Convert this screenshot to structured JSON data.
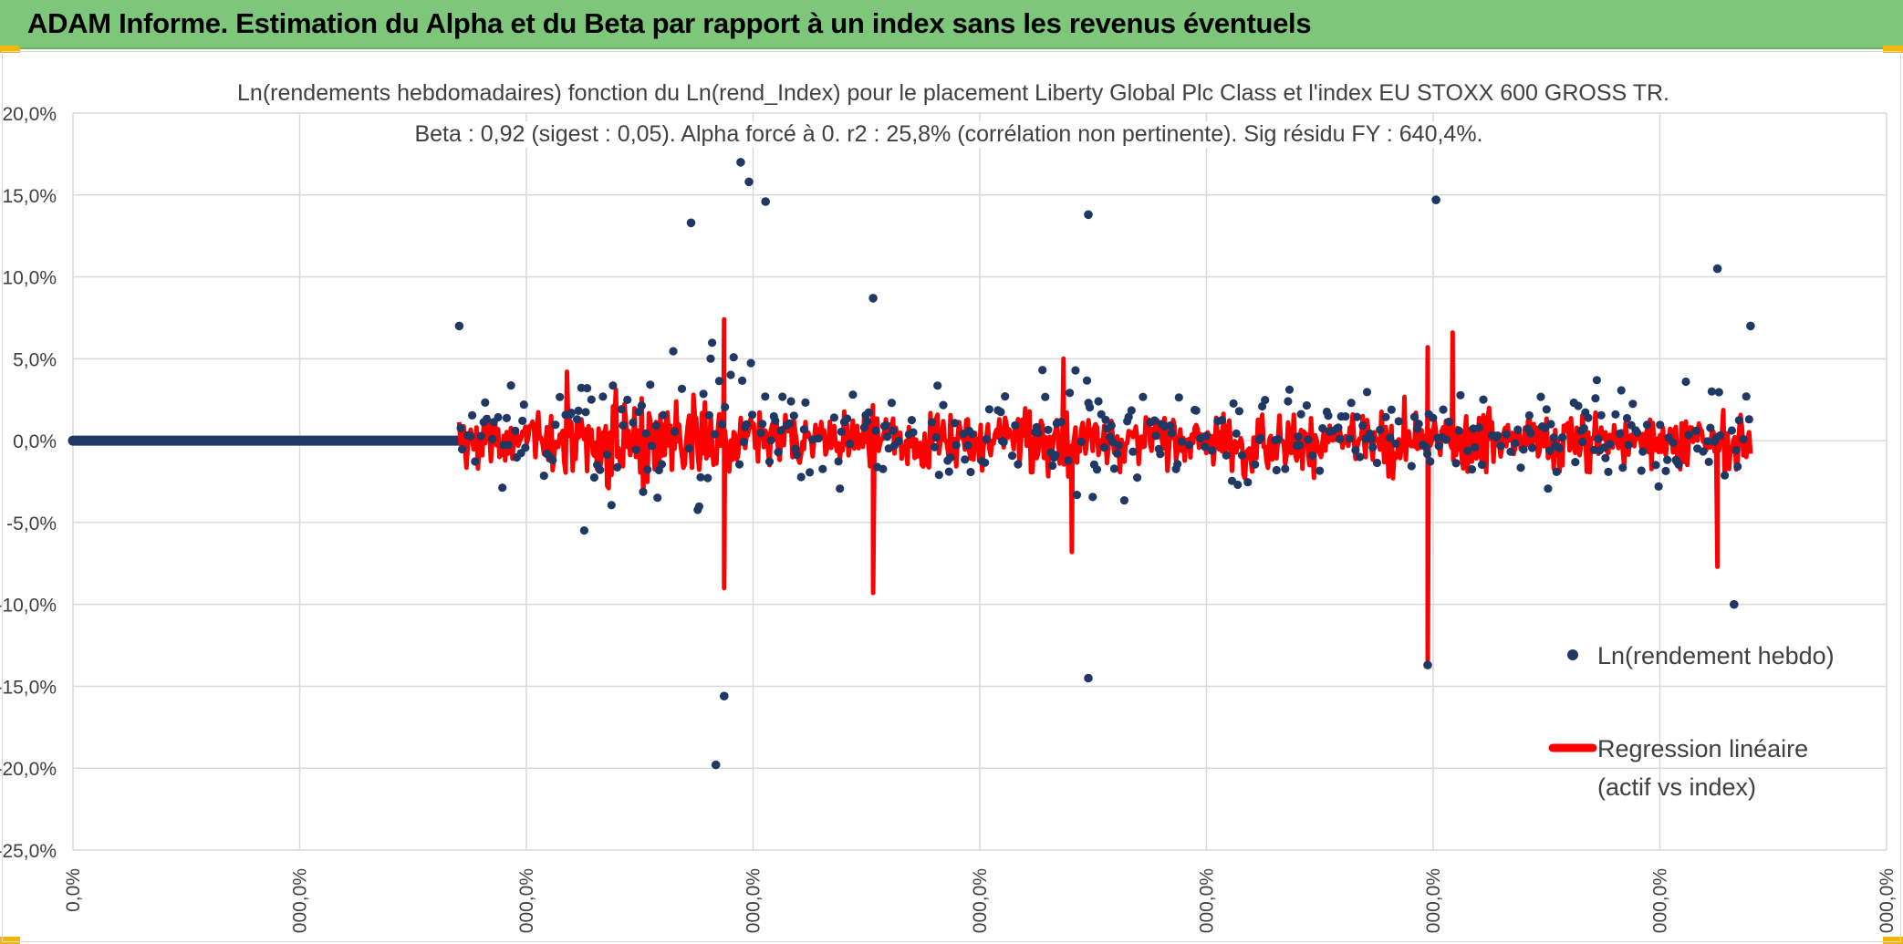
{
  "banner": {
    "title": "ADAM Informe. Estimation du Alpha et du Beta par rapport à un index sans les revenus éventuels",
    "background": "#7dc67a",
    "accent": "#f2b705"
  },
  "chart_data": {
    "type": "scatter",
    "title_line1": "Ln(rendements hebdomadaires) fonction du Ln(rend_Index) pour le placement Liberty Global Plc Class  et l'index EU STOXX 600 GROSS TR.",
    "title_line2": "Beta : 0,92 (sigest : 0,05). Alpha forcé à 0. r2 : 25,8% (corrélation non pertinente). Sig résidu FY : 640,4%.",
    "y_ticks": [
      "20,0%",
      "15,0%",
      "10,0%",
      "5,0%",
      "0,0%",
      "-5,0%",
      "-10,0%",
      "-15,0%",
      "-20,0%",
      "-25,0%"
    ],
    "x_ticks": [
      "0,0%",
      "000,0%",
      "000,0%",
      "000,0%",
      "000,0%",
      "000,0%",
      "000,0%",
      "000,0%",
      "000,0%"
    ],
    "ylim": [
      -25,
      20
    ],
    "grid": true,
    "legend_placement": "right",
    "series": [
      {
        "name": "Ln(rendement hebdo)",
        "kind": "scatter",
        "color": "#1f3864"
      },
      {
        "name": "Regression linéaire (actif vs index)",
        "kind": "line",
        "color": "#ff0000"
      }
    ],
    "legend": {
      "scatter_label": "Ln(rendement hebdo)",
      "line_label_1": "Regression linéaire",
      "line_label_2": "(actif vs index)"
    },
    "notable_points": [
      {
        "x_index": 0.17,
        "y": 7.0
      },
      {
        "x_index": 0.31,
        "y": 13.3
      },
      {
        "x_index": 0.34,
        "y": 17.0
      },
      {
        "x_index": 0.345,
        "y": 15.8
      },
      {
        "x_index": 0.355,
        "y": 14.6
      },
      {
        "x_index": 0.33,
        "y": -15.6
      },
      {
        "x_index": 0.325,
        "y": -19.8
      },
      {
        "x_index": 0.42,
        "y": 8.7
      },
      {
        "x_index": 0.55,
        "y": 13.8
      },
      {
        "x_index": 0.55,
        "y": -14.5
      },
      {
        "x_index": 0.76,
        "y": 14.7
      },
      {
        "x_index": 0.755,
        "y": -13.7
      },
      {
        "x_index": 0.93,
        "y": 10.5
      },
      {
        "x_index": 0.94,
        "y": -10.0
      },
      {
        "x_index": 0.95,
        "y": 7.0
      }
    ],
    "regression_spikes": [
      {
        "x_index": 0.33,
        "y": 7.4
      },
      {
        "x_index": 0.33,
        "y": -9.0
      },
      {
        "x_index": 0.42,
        "y": -9.3
      },
      {
        "x_index": 0.535,
        "y": 5.0
      },
      {
        "x_index": 0.54,
        "y": -6.8
      },
      {
        "x_index": 0.755,
        "y": 5.7
      },
      {
        "x_index": 0.755,
        "y": -13.4
      },
      {
        "x_index": 0.77,
        "y": 6.6
      },
      {
        "x_index": 0.93,
        "y": -7.7
      }
    ]
  }
}
